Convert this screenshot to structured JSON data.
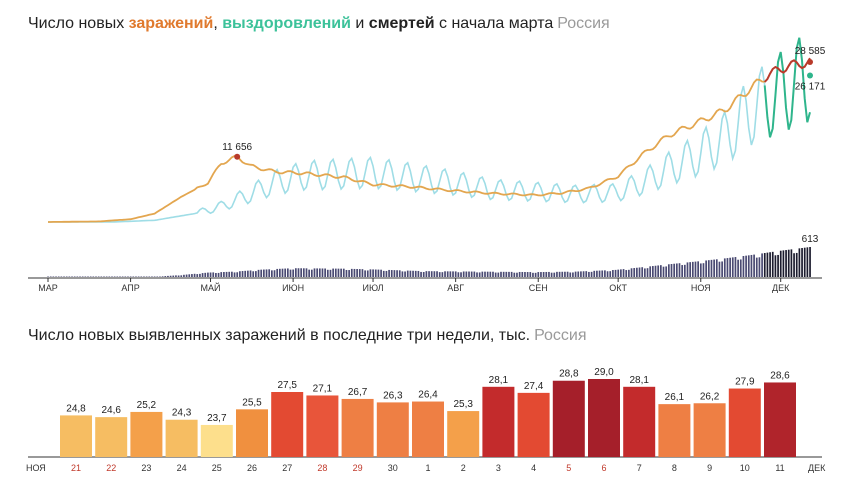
{
  "chart_data": [
    {
      "type": "line",
      "title_parts": {
        "t1": "Число новых ",
        "w1": "заражений",
        "t2": ", ",
        "w2": "выздоровлений",
        "t3": " и ",
        "w3": "смертей",
        "t4": " с начала марта"
      },
      "region": "Россия",
      "x_ticks": [
        "МАР",
        "АПР",
        "МАЙ",
        "ИЮН",
        "ИЮЛ",
        "АВГ",
        "СЕН",
        "ОКТ",
        "НОЯ",
        "ДЕК"
      ],
      "colors": {
        "infections": "#e3a64f",
        "infections_late": "#b83a2a",
        "recoveries": "#9fdde6",
        "recoveries_late": "#2fb58c",
        "deaths": "#4a4a72",
        "deaths_late": "#1c1c2e"
      },
      "series": [
        {
          "key": "infections",
          "date_points": [
            [
              "2020-03-01",
              0
            ],
            [
              "2020-03-20",
              100
            ],
            [
              "2020-04-01",
              500
            ],
            [
              "2020-04-10",
              1500
            ],
            [
              "2020-04-20",
              4500
            ],
            [
              "2020-04-30",
              7000
            ],
            [
              "2020-05-05",
              10500
            ],
            [
              "2020-05-11",
              11656
            ],
            [
              "2020-05-16",
              10000
            ],
            [
              "2020-05-25",
              9000
            ],
            [
              "2020-06-05",
              8700
            ],
            [
              "2020-06-20",
              8000
            ],
            [
              "2020-07-01",
              6700
            ],
            [
              "2020-07-15",
              6300
            ],
            [
              "2020-07-31",
              5600
            ],
            [
              "2020-08-15",
              5100
            ],
            [
              "2020-08-31",
              4800
            ],
            [
              "2020-09-10",
              5200
            ],
            [
              "2020-09-20",
              6000
            ],
            [
              "2020-10-01",
              8200
            ],
            [
              "2020-10-10",
              12000
            ],
            [
              "2020-10-20",
              15500
            ],
            [
              "2020-10-31",
              17800
            ],
            [
              "2020-11-10",
              20000
            ],
            [
              "2020-11-20",
              24000
            ],
            [
              "2020-11-27",
              26500
            ],
            [
              "2020-12-04",
              27900
            ],
            [
              "2020-12-12",
              28585
            ]
          ]
        },
        {
          "key": "recoveries",
          "date_points": [
            [
              "2020-03-01",
              0
            ],
            [
              "2020-03-25",
              0
            ],
            [
              "2020-04-10",
              300
            ],
            [
              "2020-04-25",
              1500
            ],
            [
              "2020-05-05",
              2800
            ],
            [
              "2020-05-15",
              4800
            ],
            [
              "2020-05-25",
              7000
            ],
            [
              "2020-06-05",
              8300
            ],
            [
              "2020-06-20",
              8600
            ],
            [
              "2020-07-01",
              8800
            ],
            [
              "2020-07-15",
              8000
            ],
            [
              "2020-07-31",
              7000
            ],
            [
              "2020-08-15",
              5800
            ],
            [
              "2020-08-31",
              5400
            ],
            [
              "2020-09-15",
              5000
            ],
            [
              "2020-09-30",
              5200
            ],
            [
              "2020-10-10",
              7000
            ],
            [
              "2020-10-20",
              9500
            ],
            [
              "2020-10-31",
              12000
            ],
            [
              "2020-11-10",
              15000
            ],
            [
              "2020-11-20",
              20000
            ],
            [
              "2020-11-27",
              22000
            ],
            [
              "2020-12-04",
              24000
            ],
            [
              "2020-12-12",
              26171
            ]
          ]
        },
        {
          "key": "deaths",
          "date_points": [
            [
              "2020-03-01",
              0
            ],
            [
              "2020-04-10",
              5
            ],
            [
              "2020-04-20",
              40
            ],
            [
              "2020-04-30",
              90
            ],
            [
              "2020-05-10",
              110
            ],
            [
              "2020-05-20",
              150
            ],
            [
              "2020-06-01",
              180
            ],
            [
              "2020-06-20",
              170
            ],
            [
              "2020-07-01",
              155
            ],
            [
              "2020-07-20",
              120
            ],
            [
              "2020-08-10",
              110
            ],
            [
              "2020-08-31",
              100
            ],
            [
              "2020-09-15",
              110
            ],
            [
              "2020-09-30",
              145
            ],
            [
              "2020-10-10",
              200
            ],
            [
              "2020-10-20",
              260
            ],
            [
              "2020-10-31",
              320
            ],
            [
              "2020-11-10",
              380
            ],
            [
              "2020-11-20",
              450
            ],
            [
              "2020-11-30",
              530
            ],
            [
              "2020-12-12",
              613
            ]
          ]
        }
      ],
      "annotations": [
        {
          "label": "11 656",
          "date": "2020-05-11",
          "value": 11656
        },
        {
          "label": "28 585",
          "date": "2020-12-12",
          "value": 28585
        },
        {
          "label": "26 171",
          "date": "2020-12-12",
          "value": 26171
        },
        {
          "label": "613",
          "date": "2020-12-12",
          "value": 613
        }
      ]
    },
    {
      "type": "bar",
      "title": "Число новых выявленных заражений в последние три недели, тыс.",
      "region": "Россия",
      "start_label": "НОЯ",
      "end_label": "ДЕК",
      "categories": [
        "21",
        "22",
        "23",
        "24",
        "25",
        "26",
        "27",
        "28",
        "29",
        "30",
        "1",
        "2",
        "3",
        "4",
        "5",
        "6",
        "7",
        "8",
        "9",
        "10",
        "11"
      ],
      "values": [
        24.8,
        24.6,
        25.2,
        24.3,
        23.7,
        25.5,
        27.5,
        27.1,
        26.7,
        26.3,
        26.4,
        25.3,
        28.1,
        27.4,
        28.8,
        29.0,
        28.1,
        26.1,
        26.2,
        27.9,
        28.6
      ],
      "value_labels": [
        "24,8",
        "24,6",
        "25,2",
        "24,3",
        "23,7",
        "25,5",
        "27,5",
        "27,1",
        "26,7",
        "26,3",
        "26,4",
        "25,3",
        "28,1",
        "27,4",
        "28,8",
        "29,0",
        "28,1",
        "26,1",
        "26,2",
        "27,9",
        "28,6"
      ],
      "weekend_days": [
        "21",
        "22",
        "28",
        "29",
        "5",
        "6"
      ],
      "weekend_color": "#c0392b"
    }
  ]
}
